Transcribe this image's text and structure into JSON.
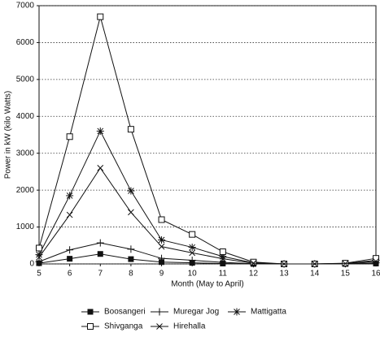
{
  "chart_data": {
    "type": "line",
    "x_label": "Month (May to April)",
    "y_label": "Power in kW (kilo Watts)",
    "x": [
      5,
      6,
      7,
      8,
      9,
      10,
      11,
      12,
      13,
      14,
      15,
      16
    ],
    "xlim": [
      5,
      16
    ],
    "xticks": [
      5,
      6,
      7,
      8,
      9,
      10,
      11,
      12,
      13,
      14,
      15,
      16
    ],
    "ylim": [
      0,
      7000
    ],
    "yticks": [
      0,
      1000,
      2000,
      3000,
      4000,
      5000,
      6000,
      7000
    ],
    "grid": true,
    "series": [
      {
        "name": "Boosangeri",
        "color": "#111111",
        "marker": "filled-square",
        "values": [
          20,
          140,
          270,
          130,
          50,
          30,
          10,
          0,
          0,
          0,
          0,
          10
        ]
      },
      {
        "name": "Muregar Jog",
        "color": "#111111",
        "marker": "plus",
        "values": [
          60,
          380,
          570,
          400,
          150,
          100,
          40,
          5,
          0,
          0,
          5,
          30
        ]
      },
      {
        "name": "Mattigatta",
        "color": "#111111",
        "marker": "asterisk",
        "values": [
          250,
          1850,
          3600,
          1980,
          650,
          450,
          200,
          30,
          0,
          0,
          10,
          100
        ]
      },
      {
        "name": "Shivganga",
        "color": "#111111",
        "marker": "open-square",
        "values": [
          430,
          3450,
          6700,
          3650,
          1200,
          800,
          330,
          50,
          0,
          0,
          20,
          150
        ]
      },
      {
        "name": "Hirehalla",
        "color": "#111111",
        "marker": "cross",
        "values": [
          180,
          1330,
          2600,
          1400,
          470,
          300,
          140,
          20,
          0,
          0,
          10,
          70
        ]
      }
    ]
  }
}
